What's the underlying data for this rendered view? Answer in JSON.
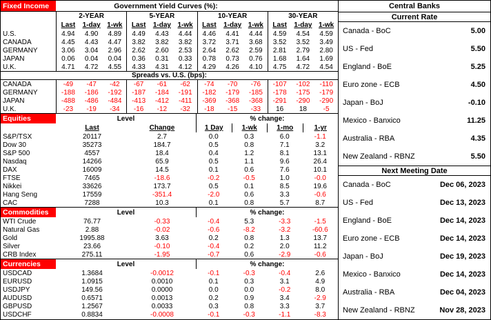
{
  "palette": {
    "section_header_bg": "#ff0000",
    "section_header_text": "#ffffff",
    "negative_value": "#ff0000",
    "border": "#000000",
    "background": "#ffffff"
  },
  "fixed_income": {
    "section_label": "Fixed Income",
    "title": "Government Yield Curves (%):",
    "maturities": [
      "2-YEAR",
      "5-YEAR",
      "10-YEAR",
      "30-YEAR"
    ],
    "sub_headers": [
      "Last",
      "1-day",
      "1-wk"
    ],
    "yield_rows": [
      {
        "label": "U.S.",
        "values": [
          "4.94",
          "4.90",
          "4.89",
          "4.49",
          "4.43",
          "4.44",
          "4.46",
          "4.41",
          "4.44",
          "4.59",
          "4.54",
          "4.59"
        ]
      },
      {
        "label": "CANADA",
        "values": [
          "4.45",
          "4.43",
          "4.47",
          "3.82",
          "3.82",
          "3.82",
          "3.72",
          "3.71",
          "3.68",
          "3.52",
          "3.52",
          "3.49"
        ]
      },
      {
        "label": "GERMANY",
        "values": [
          "3.06",
          "3.04",
          "2.96",
          "2.62",
          "2.60",
          "2.53",
          "2.64",
          "2.62",
          "2.59",
          "2.81",
          "2.79",
          "2.80"
        ]
      },
      {
        "label": "JAPAN",
        "values": [
          "0.06",
          "0.04",
          "0.04",
          "0.36",
          "0.31",
          "0.33",
          "0.78",
          "0.73",
          "0.76",
          "1.68",
          "1.64",
          "1.69"
        ]
      },
      {
        "label": "U.K.",
        "values": [
          "4.71",
          "4.72",
          "4.55",
          "4.33",
          "4.31",
          "4.12",
          "4.29",
          "4.26",
          "4.10",
          "4.75",
          "4.72",
          "4.54"
        ]
      }
    ],
    "spreads_title": "Spreads vs. U.S. (bps):",
    "spread_rows": [
      {
        "label": "CANADA",
        "values": [
          "-49",
          "-47",
          "-42",
          "-67",
          "-61",
          "-62",
          "-74",
          "-70",
          "-76",
          "-107",
          "-102",
          "-110"
        ]
      },
      {
        "label": "GERMANY",
        "values": [
          "-188",
          "-186",
          "-192",
          "-187",
          "-184",
          "-191",
          "-182",
          "-179",
          "-185",
          "-178",
          "-175",
          "-179"
        ]
      },
      {
        "label": "JAPAN",
        "values": [
          "-488",
          "-486",
          "-484",
          "-413",
          "-412",
          "-411",
          "-369",
          "-368",
          "-368",
          "-291",
          "-290",
          "-290"
        ]
      },
      {
        "label": "U.K.",
        "values": [
          "-23",
          "-19",
          "-34",
          "-16",
          "-12",
          "-32",
          "-18",
          "-15",
          "-33",
          "16",
          "18",
          "-5"
        ]
      }
    ]
  },
  "market_sections": [
    {
      "section_label": "Equities",
      "level_header": "Level",
      "pct_header": "% change:",
      "sub_headers": {
        "last": "Last",
        "change": "Change",
        "pct": [
          "1 Day",
          "1-wk",
          "1-mo",
          "1-yr"
        ]
      },
      "rows": [
        {
          "label": "S&P/TSX",
          "last": "20117",
          "change": "2.7",
          "pct": [
            "0.0",
            "0.3",
            "6.0",
            "-1.1"
          ]
        },
        {
          "label": "Dow 30",
          "last": "35273",
          "change": "184.7",
          "pct": [
            "0.5",
            "0.8",
            "7.1",
            "3.2"
          ]
        },
        {
          "label": "S&P 500",
          "last": "4557",
          "change": "18.4",
          "pct": [
            "0.4",
            "1.2",
            "8.1",
            "13.1"
          ]
        },
        {
          "label": "Nasdaq",
          "last": "14266",
          "change": "65.9",
          "pct": [
            "0.5",
            "1.1",
            "9.6",
            "26.4"
          ]
        },
        {
          "label": "DAX",
          "last": "16009",
          "change": "14.5",
          "pct": [
            "0.1",
            "0.6",
            "7.6",
            "10.1"
          ]
        },
        {
          "label": "FTSE",
          "last": "7465",
          "change": "-18.6",
          "pct": [
            "-0.2",
            "-0.5",
            "1.0",
            "-0.0"
          ]
        },
        {
          "label": "Nikkei",
          "last": "33626",
          "change": "173.7",
          "pct": [
            "0.5",
            "0.1",
            "8.5",
            "19.6"
          ]
        },
        {
          "label": "Hang Seng",
          "last": "17559",
          "change": "-351.4",
          "pct": [
            "-2.0",
            "0.6",
            "3.3",
            "-0.6"
          ]
        },
        {
          "label": "CAC",
          "last": "7288",
          "change": "10.3",
          "pct": [
            "0.1",
            "0.8",
            "5.7",
            "8.7"
          ]
        }
      ]
    },
    {
      "section_label": "Commodities",
      "level_header": "Level",
      "pct_header": "% change:",
      "sub_headers": null,
      "rows": [
        {
          "label": "WTI Crude",
          "last": "76.77",
          "change": "-0.33",
          "pct": [
            "-0.4",
            "5.3",
            "-3.3",
            "-1.5"
          ]
        },
        {
          "label": "Natural Gas",
          "last": "2.88",
          "change": "-0.02",
          "pct": [
            "-0.6",
            "-8.2",
            "-3.2",
            "-60.6"
          ]
        },
        {
          "label": "Gold",
          "last": "1995.88",
          "change": "3.63",
          "pct": [
            "0.2",
            "0.8",
            "1.3",
            "13.7"
          ]
        },
        {
          "label": "Silver",
          "last": "23.66",
          "change": "-0.10",
          "pct": [
            "-0.4",
            "0.2",
            "2.0",
            "11.2"
          ]
        },
        {
          "label": "CRB Index",
          "last": "275.11",
          "change": "-1.95",
          "pct": [
            "-0.7",
            "0.6",
            "-2.9",
            "-0.6"
          ]
        }
      ]
    },
    {
      "section_label": "Currencies",
      "level_header": "Level",
      "pct_header": "% change:",
      "sub_headers": null,
      "rows": [
        {
          "label": "USDCAD",
          "last": "1.3684",
          "change": "-0.0012",
          "pct": [
            "-0.1",
            "-0.3",
            "-0.4",
            "2.6"
          ]
        },
        {
          "label": "EURUSD",
          "last": "1.0915",
          "change": "0.0010",
          "pct": [
            "0.1",
            "0.3",
            "3.1",
            "4.9"
          ]
        },
        {
          "label": "USDJPY",
          "last": "149.56",
          "change": "0.0000",
          "pct": [
            "0.0",
            "0.0",
            "-0.2",
            "8.0"
          ]
        },
        {
          "label": "AUDUSD",
          "last": "0.6571",
          "change": "0.0013",
          "pct": [
            "0.2",
            "0.9",
            "3.4",
            "-2.9"
          ]
        },
        {
          "label": "GBPUSD",
          "last": "1.2567",
          "change": "0.0033",
          "pct": [
            "0.3",
            "0.8",
            "3.3",
            "3.7"
          ]
        },
        {
          "label": "USDCHF",
          "last": "0.8834",
          "change": "-0.0008",
          "pct": [
            "-0.1",
            "-0.3",
            "-1.1",
            "-8.3"
          ]
        }
      ]
    }
  ],
  "central_banks": {
    "title": "Central Banks",
    "current_rate_header": "Current Rate",
    "rates": [
      {
        "name": "Canada - BoC",
        "value": "5.00"
      },
      {
        "name": "US - Fed",
        "value": "5.50"
      },
      {
        "name": "England - BoE",
        "value": "5.25"
      },
      {
        "name": "Euro zone - ECB",
        "value": "4.50"
      },
      {
        "name": "Japan - BoJ",
        "value": "-0.10"
      },
      {
        "name": "Mexico - Banxico",
        "value": "11.25"
      },
      {
        "name": "Australia - RBA",
        "value": "4.35"
      },
      {
        "name": "New Zealand - RBNZ",
        "value": "5.50"
      }
    ],
    "next_meeting_header": "Next Meeting Date",
    "meetings": [
      {
        "name": "Canada - BoC",
        "value": "Dec 06, 2023"
      },
      {
        "name": "US - Fed",
        "value": "Dec 13, 2023"
      },
      {
        "name": "England - BoE",
        "value": "Dec 14, 2023"
      },
      {
        "name": "Euro zone - ECB",
        "value": "Dec 14, 2023"
      },
      {
        "name": "Japan - BoJ",
        "value": "Dec 19, 2023"
      },
      {
        "name": "Mexico - Banxico",
        "value": "Dec 14, 2023"
      },
      {
        "name": "Australia - RBA",
        "value": "Dec 04, 2023"
      },
      {
        "name": "New Zealand - RBNZ",
        "value": "Nov 28, 2023"
      }
    ]
  }
}
